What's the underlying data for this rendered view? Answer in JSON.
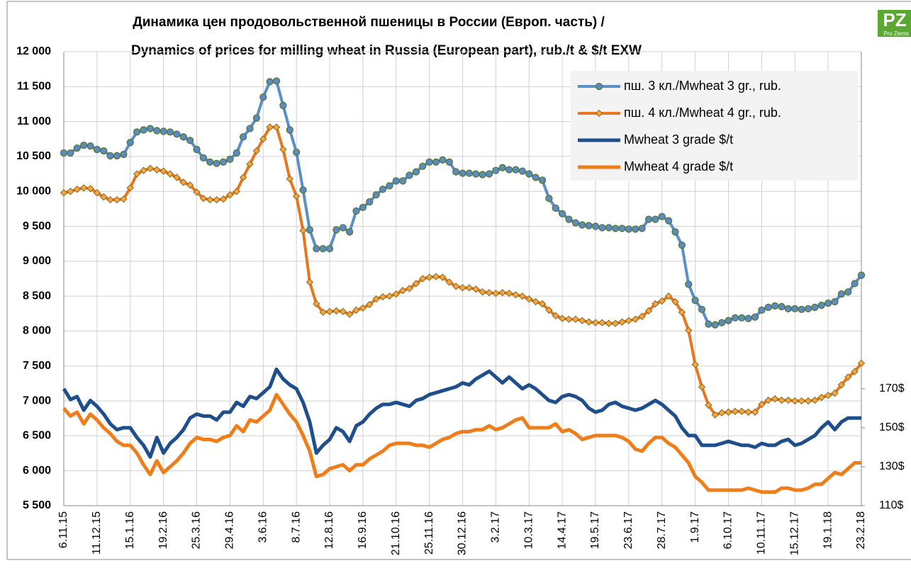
{
  "logo": {
    "mark": "PZ",
    "text": "Pro Zerno"
  },
  "chart_data": {
    "type": "line",
    "title": "Динамика цен продовольственной пшеницы в России (Европ. часть) /",
    "subtitle": "Dynamics of prices for milling wheat in Russia (European part), rub./t & $/t EXW",
    "categories": [
      "6.11.15",
      null,
      null,
      null,
      null,
      "11.12.15",
      null,
      null,
      null,
      null,
      "15.1.16",
      null,
      null,
      null,
      null,
      "19.2.16",
      null,
      null,
      null,
      null,
      "25.3.16",
      null,
      null,
      null,
      null,
      "29.4.16",
      null,
      null,
      null,
      null,
      "3.6.16",
      null,
      null,
      null,
      null,
      "8.7.16",
      null,
      null,
      null,
      null,
      "12.8.16",
      null,
      null,
      null,
      null,
      "16.9.16",
      null,
      null,
      null,
      null,
      "21.10.16",
      null,
      null,
      null,
      null,
      "25.11.16",
      null,
      null,
      null,
      null,
      "30.12.16",
      null,
      null,
      null,
      null,
      "3.2.17",
      null,
      null,
      null,
      null,
      "10.3.17",
      null,
      null,
      null,
      null,
      "14.4.17",
      null,
      null,
      null,
      null,
      "19.5.17",
      null,
      null,
      null,
      null,
      "23.6.17",
      null,
      null,
      null,
      null,
      "28.7.17",
      null,
      null,
      null,
      null,
      "1.9.17",
      null,
      null,
      null,
      null,
      "6.10.17",
      null,
      null,
      null,
      null,
      "10.11.17",
      null,
      null,
      null,
      null,
      "15.12.17",
      null,
      null,
      null,
      null,
      "19.1.18",
      null,
      null,
      null,
      null,
      "23.2.18"
    ],
    "series": [
      {
        "name": "пш. 3 кл./Mwheat 3 gr., rub.",
        "color": "#5b8fc7",
        "marker": "circle",
        "marker_fill": "#5a8cbf",
        "marker_stroke": "#56763a",
        "values": [
          10550,
          10550,
          10620,
          10660,
          10650,
          10600,
          10580,
          10510,
          10510,
          10530,
          10700,
          10850,
          10880,
          10900,
          10870,
          10860,
          10850,
          10820,
          10780,
          10730,
          10600,
          10480,
          10420,
          10400,
          10420,
          10460,
          10550,
          10780,
          10900,
          11050,
          11350,
          11570,
          11580,
          11230,
          10880,
          10560,
          10020,
          9450,
          9180,
          9180,
          9180,
          9450,
          9480,
          9420,
          9720,
          9770,
          9850,
          9950,
          10030,
          10080,
          10150,
          10150,
          10230,
          10280,
          10360,
          10420,
          10420,
          10450,
          10420,
          10280,
          10260,
          10260,
          10250,
          10240,
          10250,
          10300,
          10340,
          10310,
          10310,
          10290,
          10250,
          10200,
          10160,
          9900,
          9760,
          9680,
          9600,
          9550,
          9520,
          9510,
          9500,
          9480,
          9480,
          9470,
          9470,
          9460,
          9460,
          9470,
          9600,
          9600,
          9640,
          9580,
          9420,
          9230,
          8670,
          8440,
          8310,
          8100,
          8090,
          8120,
          8150,
          8190,
          8190,
          8180,
          8200,
          8300,
          8340,
          8360,
          8350,
          8320,
          8320,
          8310,
          8320,
          8340,
          8370,
          8400,
          8420,
          8530,
          8560,
          8680,
          8800
        ]
      },
      {
        "name": "пш. 4 кл./Mwheat 4 gr., rub.",
        "color": "#e8761e",
        "marker": "diamond",
        "marker_fill": "#f5a542",
        "marker_stroke": "#8a6a1e",
        "values": [
          9980,
          10000,
          10030,
          10050,
          10040,
          9980,
          9920,
          9880,
          9880,
          9890,
          10050,
          10250,
          10300,
          10330,
          10310,
          10290,
          10250,
          10200,
          10130,
          10090,
          9990,
          9900,
          9880,
          9880,
          9890,
          9950,
          10000,
          10200,
          10390,
          10580,
          10750,
          10920,
          10920,
          10600,
          10180,
          9930,
          9440,
          8700,
          8390,
          8270,
          8280,
          8290,
          8280,
          8240,
          8300,
          8330,
          8380,
          8460,
          8490,
          8500,
          8530,
          8580,
          8610,
          8680,
          8750,
          8770,
          8780,
          8770,
          8700,
          8640,
          8620,
          8620,
          8600,
          8560,
          8550,
          8540,
          8550,
          8540,
          8520,
          8500,
          8460,
          8420,
          8390,
          8300,
          8220,
          8180,
          8170,
          8170,
          8150,
          8130,
          8120,
          8120,
          8110,
          8110,
          8130,
          8150,
          8170,
          8210,
          8290,
          8390,
          8430,
          8500,
          8420,
          8270,
          8010,
          7520,
          7200,
          6940,
          6800,
          6830,
          6840,
          6850,
          6850,
          6840,
          6840,
          6950,
          7010,
          7030,
          7010,
          7010,
          7000,
          7000,
          7000,
          7010,
          7050,
          7080,
          7110,
          7230,
          7340,
          7420,
          7540
        ]
      },
      {
        "name": "Mwheat 3 grade $/t",
        "color": "#1f4e8c",
        "axis": "y2",
        "values": [
          170,
          164.5,
          166,
          159,
          164,
          161,
          157,
          152,
          149,
          150,
          150,
          145,
          141,
          135,
          145,
          137,
          142,
          145,
          149,
          155,
          157,
          156,
          156,
          154,
          158,
          158,
          163,
          161,
          166,
          165,
          168,
          171,
          180,
          175,
          172,
          170,
          163,
          153,
          137,
          141,
          144,
          150,
          148,
          143,
          151,
          153,
          157,
          160,
          162,
          162,
          163,
          162,
          161,
          164,
          165,
          167,
          168,
          169,
          170,
          171,
          173,
          172,
          175,
          177,
          179,
          176,
          173,
          176,
          173,
          170,
          172,
          170,
          167,
          164,
          163,
          166,
          167,
          166,
          164,
          160,
          158,
          159,
          162,
          163,
          161,
          160,
          159,
          160,
          162,
          164,
          162,
          159,
          156,
          150,
          146,
          146,
          141,
          141,
          141,
          142,
          143,
          142,
          141,
          141,
          140,
          142,
          141,
          141,
          143,
          144,
          141,
          142,
          144,
          146,
          150,
          153,
          149,
          153,
          155,
          155,
          155
        ]
      },
      {
        "name": "Mwheat 4 grade $/t",
        "color": "#ee7d1a",
        "axis": "y2",
        "values": [
          160,
          156,
          158,
          152,
          157,
          154,
          150,
          147,
          143,
          141,
          141,
          137,
          131,
          126,
          133,
          127,
          130,
          133,
          137,
          142,
          145,
          144,
          144,
          143,
          145,
          146,
          151,
          148,
          154,
          153,
          156,
          159,
          167,
          162,
          157,
          153,
          146,
          138,
          125,
          126,
          129,
          130,
          131,
          128,
          131,
          131,
          134,
          136,
          138,
          141,
          142,
          142,
          142,
          141,
          141,
          140,
          142,
          144,
          145,
          147,
          148,
          148,
          149,
          149,
          151,
          149,
          150,
          152,
          154,
          155,
          150,
          150,
          150,
          150,
          152,
          148,
          149,
          147,
          144,
          145,
          146,
          146,
          146,
          146,
          145,
          143,
          139,
          138,
          142,
          145,
          145,
          142,
          140,
          136,
          132,
          125,
          122,
          118,
          118,
          118,
          118,
          118,
          118,
          119,
          118,
          117,
          117,
          117,
          119,
          119,
          118,
          118,
          119,
          121,
          121,
          124,
          127,
          126,
          129,
          132,
          132
        ]
      }
    ],
    "ylim": [
      5500,
      12000
    ],
    "yticks": [
      {
        "value": 5500,
        "label": "5 500"
      },
      {
        "value": 6000,
        "label": "6 000"
      },
      {
        "value": 6500,
        "label": "6 500"
      },
      {
        "value": 7000,
        "label": "7 000"
      },
      {
        "value": 7500,
        "label": "7 500"
      },
      {
        "value": 8000,
        "label": "8 000"
      },
      {
        "value": 8500,
        "label": "8 500"
      },
      {
        "value": 9000,
        "label": "9 000"
      },
      {
        "value": 9500,
        "label": "9 500"
      },
      {
        "value": 10000,
        "label": "10 000"
      },
      {
        "value": 10500,
        "label": "10 500"
      },
      {
        "value": 11000,
        "label": "11 000"
      },
      {
        "value": 11500,
        "label": "11 500"
      },
      {
        "value": 12000,
        "label": "12 000"
      }
    ],
    "y2lim": [
      110,
      343
    ],
    "y2ticks": [
      {
        "value": 110,
        "label": "110$"
      },
      {
        "value": 130,
        "label": "130$"
      },
      {
        "value": 150,
        "label": "150$"
      },
      {
        "value": 170,
        "label": "170$"
      }
    ],
    "grid": true,
    "legend": "top-right"
  }
}
